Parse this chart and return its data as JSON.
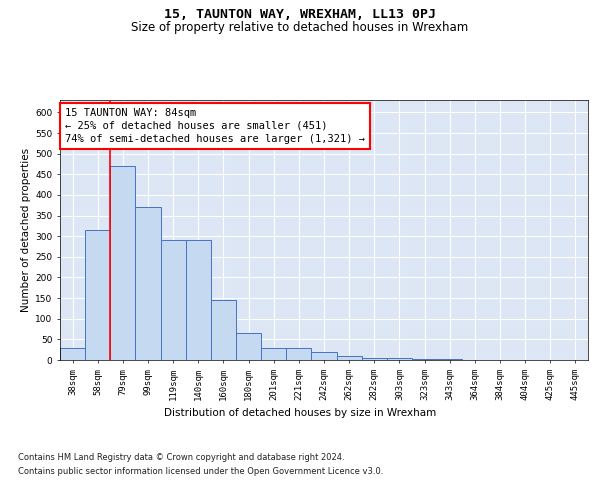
{
  "title": "15, TAUNTON WAY, WREXHAM, LL13 0PJ",
  "subtitle": "Size of property relative to detached houses in Wrexham",
  "xlabel": "Distribution of detached houses by size in Wrexham",
  "ylabel": "Number of detached properties",
  "categories": [
    "38sqm",
    "58sqm",
    "79sqm",
    "99sqm",
    "119sqm",
    "140sqm",
    "160sqm",
    "180sqm",
    "201sqm",
    "221sqm",
    "242sqm",
    "262sqm",
    "282sqm",
    "303sqm",
    "323sqm",
    "343sqm",
    "364sqm",
    "384sqm",
    "404sqm",
    "425sqm",
    "445sqm"
  ],
  "values": [
    30,
    315,
    470,
    370,
    290,
    290,
    145,
    65,
    30,
    30,
    20,
    10,
    5,
    4,
    2,
    2,
    1,
    1,
    1,
    0,
    1
  ],
  "bar_color": "#c5d9f1",
  "bar_edge_color": "#4472c4",
  "red_line_bin": 2,
  "annotation_line1": "15 TAUNTON WAY: 84sqm",
  "annotation_line2": "← 25% of detached houses are smaller (451)",
  "annotation_line3": "74% of semi-detached houses are larger (1,321) →",
  "annotation_box_color": "#ffffff",
  "annotation_box_edge_color": "#ff0000",
  "ylim": [
    0,
    630
  ],
  "yticks": [
    0,
    50,
    100,
    150,
    200,
    250,
    300,
    350,
    400,
    450,
    500,
    550,
    600
  ],
  "bg_color": "#dce6f5",
  "grid_color": "#ffffff",
  "footer_line1": "Contains HM Land Registry data © Crown copyright and database right 2024.",
  "footer_line2": "Contains public sector information licensed under the Open Government Licence v3.0.",
  "title_fontsize": 9.5,
  "subtitle_fontsize": 8.5,
  "axis_label_fontsize": 7.5,
  "tick_fontsize": 6.5,
  "annotation_fontsize": 7.5,
  "footer_fontsize": 6
}
